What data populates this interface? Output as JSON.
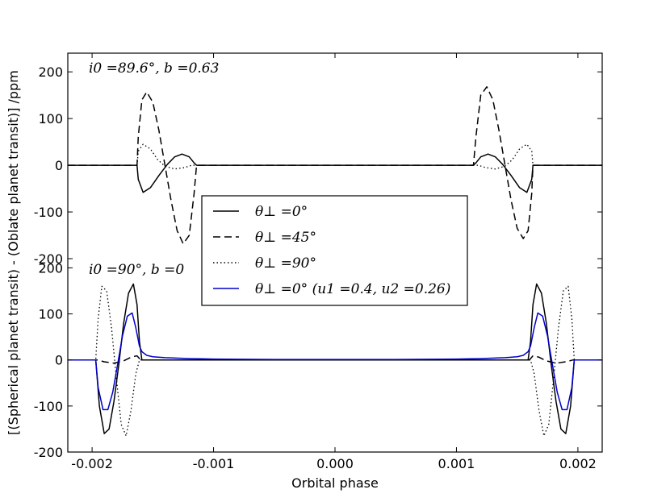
{
  "chart_data": {
    "type": "line",
    "xlabel": "Orbital phase",
    "ylabel": "[(Spherical planet transit) - (Oblate planet transit)] /ppm",
    "xlim": [
      -0.0022,
      0.0022
    ],
    "x_ticks": [
      "-0.002",
      "-0.001",
      "0.000",
      "0.001",
      "0.002"
    ],
    "x_tick_values": [
      -0.002,
      -0.001,
      0.0,
      0.001,
      0.002
    ],
    "grid": false,
    "legend_placement": "center",
    "legend": [
      {
        "label": "θ⊥ =0°",
        "style": "solid",
        "color": "#000000"
      },
      {
        "label": "θ⊥ =45°",
        "style": "dashed",
        "color": "#000000"
      },
      {
        "label": "θ⊥ =90°",
        "style": "dotted",
        "color": "#000000"
      },
      {
        "label": "θ⊥ =0° (u1 =0.4, u2 =0.26)",
        "style": "solid",
        "color": "#0000cc"
      }
    ],
    "panels": [
      {
        "annotation": "i0 =89.6°, b =0.63",
        "ylim": [
          -200,
          240
        ],
        "y_ticks": [
          "200",
          "100",
          "0",
          "-100",
          "-200"
        ],
        "y_tick_values": [
          200,
          100,
          0,
          -100,
          -200
        ],
        "series": [
          {
            "name": "θ⊥ =0°",
            "style": "solid",
            "color": "#000000",
            "x": [
              -0.0022,
              -0.00163,
              -0.00162,
              -0.00158,
              -0.00152,
              -0.00145,
              -0.00138,
              -0.00132,
              -0.00126,
              -0.0012,
              -0.00116,
              -0.00114,
              0.00114,
              0.00116,
              0.0012,
              0.00126,
              0.00132,
              0.00138,
              0.00145,
              0.00152,
              0.00158,
              0.00162,
              0.00163,
              0.0022
            ],
            "y": [
              0,
              0,
              -30,
              -58,
              -48,
              -22,
              2,
              18,
              24,
              18,
              5,
              0,
              0,
              5,
              18,
              24,
              18,
              2,
              -22,
              -48,
              -58,
              -30,
              0,
              0
            ]
          },
          {
            "name": "θ⊥ =45°",
            "style": "dashed",
            "color": "#000000",
            "x": [
              -0.0022,
              -0.00163,
              -0.00162,
              -0.00159,
              -0.00155,
              -0.0015,
              -0.00145,
              -0.0014,
              -0.00135,
              -0.0013,
              -0.00125,
              -0.0012,
              -0.00116,
              -0.00114,
              0.00114,
              0.00116,
              0.0012,
              0.00125,
              0.0013,
              0.00135,
              0.0014,
              0.00145,
              0.0015,
              0.00155,
              0.00159,
              0.00162,
              0.00163,
              0.0022
            ],
            "y": [
              0,
              0,
              60,
              140,
              157,
              135,
              75,
              0,
              -75,
              -140,
              -168,
              -150,
              -60,
              0,
              0,
              60,
              150,
              168,
              140,
              75,
              0,
              -75,
              -135,
              -157,
              -140,
              -60,
              0,
              0
            ]
          },
          {
            "name": "θ⊥ =90°",
            "style": "dotted",
            "color": "#000000",
            "x": [
              -0.0022,
              -0.00163,
              -0.00162,
              -0.00158,
              -0.00152,
              -0.00146,
              -0.0014,
              -0.00132,
              -0.00124,
              -0.00118,
              -0.00115,
              0.00115,
              0.00118,
              0.00124,
              0.00132,
              0.0014,
              0.00146,
              0.00152,
              0.00158,
              0.00162,
              0.00163,
              0.0022
            ],
            "y": [
              0,
              0,
              30,
              45,
              35,
              12,
              -2,
              -8,
              -5,
              0,
              0,
              0,
              0,
              -5,
              -8,
              -2,
              12,
              35,
              45,
              30,
              0,
              0
            ]
          }
        ]
      },
      {
        "annotation": "i0 =90°, b =0",
        "ylim": [
          -200,
          220
        ],
        "y_ticks": [
          "200",
          "100",
          "0",
          "-100",
          "-200"
        ],
        "y_tick_values": [
          200,
          100,
          0,
          -100,
          -200
        ],
        "series": [
          {
            "name": "θ⊥ =0°",
            "style": "solid",
            "color": "#000000",
            "x": [
              -0.0022,
              -0.00197,
              -0.00194,
              -0.0019,
              -0.00186,
              -0.00182,
              -0.00178,
              -0.00174,
              -0.0017,
              -0.00166,
              -0.00163,
              -0.00161,
              -0.00159,
              0.00159,
              0.00161,
              0.00163,
              0.00166,
              0.0017,
              0.00174,
              0.00178,
              0.00182,
              0.00186,
              0.0019,
              0.00194,
              0.00197,
              0.0022
            ],
            "y": [
              0,
              0,
              -100,
              -160,
              -150,
              -90,
              -10,
              80,
              145,
              165,
              120,
              40,
              0,
              0,
              40,
              120,
              165,
              145,
              80,
              -10,
              -90,
              -150,
              -160,
              -100,
              0,
              0
            ]
          },
          {
            "name": "θ⊥ =45°",
            "style": "dashed",
            "color": "#000000",
            "x": [
              -0.0022,
              -0.00196,
              -0.0019,
              -0.00182,
              -0.00174,
              -0.00168,
              -0.00163,
              -0.0016,
              0.0016,
              0.00163,
              0.00168,
              0.00174,
              0.00182,
              0.0019,
              0.00196,
              0.0022
            ],
            "y": [
              0,
              0,
              -4,
              -7,
              -2,
              6,
              9,
              0,
              0,
              9,
              6,
              -2,
              -7,
              -4,
              0,
              0
            ]
          },
          {
            "name": "θ⊥ =90°",
            "style": "dotted",
            "color": "#000000",
            "x": [
              -0.0022,
              -0.00197,
              -0.00195,
              -0.00192,
              -0.00188,
              -0.00184,
              -0.0018,
              -0.00176,
              -0.00172,
              -0.00168,
              -0.00164,
              -0.00161,
              0.00161,
              0.00164,
              0.00168,
              0.00172,
              0.00176,
              0.0018,
              0.00184,
              0.00188,
              0.00192,
              0.00195,
              0.00197,
              0.0022
            ],
            "y": [
              0,
              0,
              90,
              160,
              150,
              70,
              -40,
              -140,
              -165,
              -110,
              -30,
              0,
              0,
              -30,
              -110,
              -165,
              -140,
              -40,
              70,
              150,
              160,
              90,
              0,
              0
            ]
          },
          {
            "name": "θ⊥ =0° (u1 =0.4, u2 =0.26)",
            "style": "solid",
            "color": "#0000cc",
            "x": [
              -0.0022,
              -0.00197,
              -0.00195,
              -0.00191,
              -0.00187,
              -0.00183,
              -0.00179,
              -0.00175,
              -0.00171,
              -0.00167,
              -0.00164,
              -0.00161,
              -0.00159,
              -0.00155,
              -0.0015,
              -0.0014,
              -0.0012,
              -0.001,
              -0.0005,
              0.0,
              0.0005,
              0.001,
              0.0012,
              0.0014,
              0.0015,
              0.00155,
              0.00159,
              0.00161,
              0.00164,
              0.00167,
              0.00171,
              0.00175,
              0.00179,
              0.00183,
              0.00187,
              0.00191,
              0.00195,
              0.00197,
              0.0022
            ],
            "y": [
              0,
              0,
              -60,
              -108,
              -108,
              -70,
              -10,
              52,
              95,
              102,
              70,
              30,
              18,
              10,
              7,
              5,
              3,
              2,
              1,
              1,
              1,
              2,
              3,
              5,
              7,
              10,
              18,
              30,
              70,
              102,
              95,
              52,
              -10,
              -70,
              -108,
              -108,
              -60,
              0,
              0
            ]
          }
        ]
      }
    ]
  }
}
